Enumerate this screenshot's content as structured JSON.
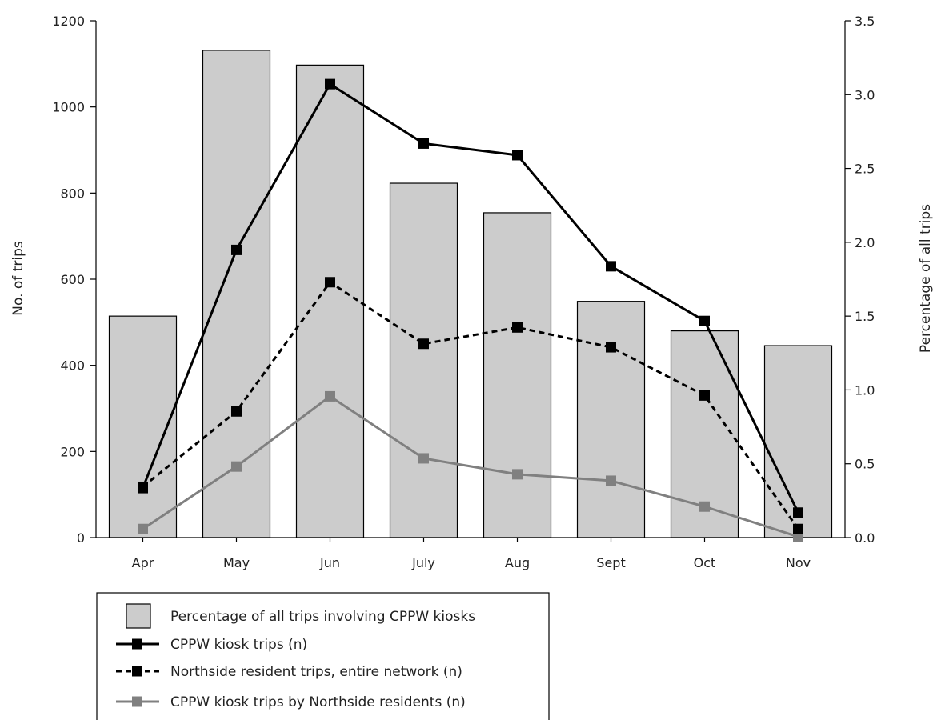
{
  "chart_data": {
    "type": "bar+line",
    "title": "",
    "categories": [
      "Apr",
      "May",
      "Jun",
      "July",
      "Aug",
      "Sept",
      "Oct",
      "Nov"
    ],
    "ylabel": "No. of trips",
    "ylabel_right": "Percentage of all trips",
    "ylim": [
      0,
      1200
    ],
    "ylim_right": [
      0,
      3.5
    ],
    "yticks": [
      "0",
      "200",
      "400",
      "600",
      "800",
      "1000",
      "1200"
    ],
    "yticks_right": [
      "0.0",
      "0.5",
      "1.0",
      "1.5",
      "2.0",
      "2.5",
      "3.0",
      "3.5"
    ],
    "bars": {
      "name": "Percentage of all trips involving CPPW kiosks",
      "axis": "right",
      "color": "#cccccc",
      "values": [
        1.5,
        3.3,
        3.2,
        2.4,
        2.2,
        1.6,
        1.4,
        1.3
      ]
    },
    "series": [
      {
        "name": "CPPW kiosk trips (n)",
        "axis": "left",
        "color": "#000000",
        "style": "solid",
        "values": [
          115,
          668,
          1053,
          915,
          888,
          630,
          503,
          58
        ]
      },
      {
        "name": "Northside resident trips, entire network (n)",
        "axis": "left",
        "color": "#000000",
        "style": "dashed",
        "values": [
          118,
          293,
          593,
          450,
          488,
          442,
          330,
          20
        ]
      },
      {
        "name": "CPPW kiosk trips by Northside residents (n)",
        "axis": "left",
        "color": "#808080",
        "style": "solid",
        "values": [
          20,
          165,
          328,
          184,
          147,
          132,
          72,
          2
        ]
      }
    ],
    "legend_position": "bottom-left",
    "grid": false
  }
}
